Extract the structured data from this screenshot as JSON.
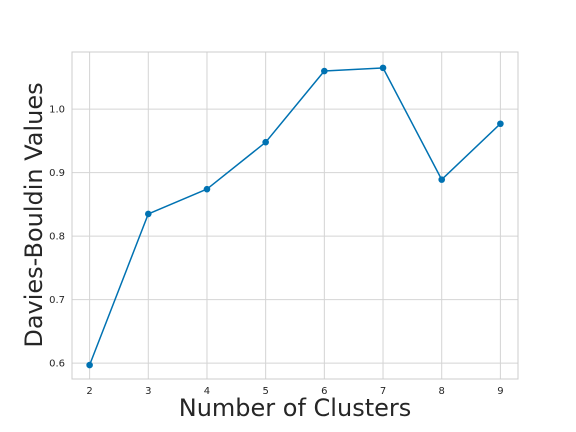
{
  "chart_data": {
    "type": "line",
    "title": "",
    "xlabel": "Number of Clusters",
    "ylabel": "Davies-Bouldin Values",
    "x": [
      2,
      3,
      4,
      5,
      6,
      7,
      8,
      9
    ],
    "series": [
      {
        "values": [
          0.597,
          0.835,
          0.874,
          0.948,
          1.06,
          1.065,
          0.889,
          0.977
        ]
      }
    ],
    "xlim": [
      1.7,
      9.3
    ],
    "ylim": [
      0.575,
      1.09
    ],
    "xticks": [
      "2",
      "3",
      "4",
      "5",
      "6",
      "7",
      "8",
      "9"
    ],
    "yticks": [
      "0.6",
      "0.7",
      "0.8",
      "0.9",
      "1.0"
    ],
    "grid": true,
    "line_color": "#0072b2",
    "grid_color": "#d4d4d4",
    "axes_edge_color": "#cccccc"
  }
}
